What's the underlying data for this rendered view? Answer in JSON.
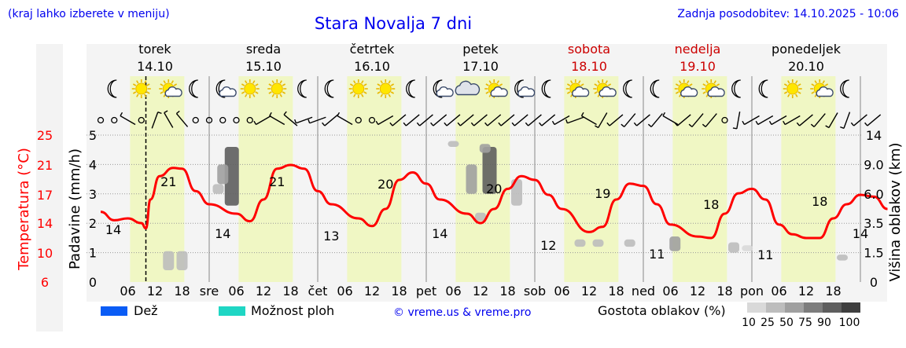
{
  "header": {
    "left_note": "(kraj lahko izberete v meniju)",
    "title": "Stara Novalja 7 dni",
    "updated": "Zadnja posodobitev: 14.10.2025 - 10:06"
  },
  "days": [
    {
      "name": "torek",
      "date": "14.10",
      "abbr": "",
      "weekend": false
    },
    {
      "name": "sreda",
      "date": "15.10",
      "abbr": "sre",
      "weekend": false
    },
    {
      "name": "četrtek",
      "date": "16.10",
      "abbr": "čet",
      "weekend": false
    },
    {
      "name": "petek",
      "date": "17.10",
      "abbr": "pet",
      "weekend": false
    },
    {
      "name": "sobota",
      "date": "18.10",
      "abbr": "sob",
      "weekend": true
    },
    {
      "name": "nedelja",
      "date": "19.10",
      "abbr": "ned",
      "weekend": true
    },
    {
      "name": "ponedeljek",
      "date": "20.10",
      "abbr": "pon",
      "weekend": false
    }
  ],
  "hour_labels": [
    "06",
    "12",
    "18"
  ],
  "legend": {
    "rain": "Dež",
    "showers": "Možnost ploh",
    "copyright": "© vreme.us & vreme.pro",
    "cloud_density": "Gostota oblakov (%)",
    "density_levels": [
      "10",
      "25",
      "50",
      "75",
      "90",
      "100"
    ]
  },
  "colors": {
    "rain": "#0a5cf5",
    "showers": "#1fd6c4",
    "temperature": "#ff0000",
    "title": "#0000ee",
    "weekend": "#cc0000"
  },
  "chart_data": {
    "type": "line",
    "title": "Stara Novalja 7 dni",
    "x_unit": "hours from 14.10 00:00",
    "xlim": [
      0,
      168
    ],
    "now_marker_hour": 10,
    "temperature": {
      "label": "Temperatura (°C)",
      "ticks": [
        6,
        10,
        14,
        17,
        21,
        25
      ],
      "points": [
        [
          0,
          15.2
        ],
        [
          3,
          14.3
        ],
        [
          6,
          14.5
        ],
        [
          9,
          14.0
        ],
        [
          10,
          13.3
        ],
        [
          11,
          16.5
        ],
        [
          13,
          19.5
        ],
        [
          16,
          20.6
        ],
        [
          18,
          20.5
        ],
        [
          21,
          17.5
        ],
        [
          24,
          16.0
        ],
        [
          30,
          15.0
        ],
        [
          33,
          14.2
        ],
        [
          36,
          16.5
        ],
        [
          39,
          20.5
        ],
        [
          42,
          21.0
        ],
        [
          45,
          20.5
        ],
        [
          48,
          17.5
        ],
        [
          51,
          16.0
        ],
        [
          57,
          14.5
        ],
        [
          60,
          13.6
        ],
        [
          63,
          15.5
        ],
        [
          66,
          19.0
        ],
        [
          69,
          20.0
        ],
        [
          72,
          18.5
        ],
        [
          75,
          16.5
        ],
        [
          81,
          15.0
        ],
        [
          84,
          14.0
        ],
        [
          87,
          15.5
        ],
        [
          90,
          17.8
        ],
        [
          93,
          19.5
        ],
        [
          96,
          19.0
        ],
        [
          99,
          17.0
        ],
        [
          102,
          15.5
        ],
        [
          108,
          12.8
        ],
        [
          111,
          13.5
        ],
        [
          114,
          16.5
        ],
        [
          117,
          18.5
        ],
        [
          120,
          18.2
        ],
        [
          123,
          16.0
        ],
        [
          126,
          13.8
        ],
        [
          132,
          12.2
        ],
        [
          135,
          12.0
        ],
        [
          138,
          15.0
        ],
        [
          141,
          17.2
        ],
        [
          144,
          17.8
        ],
        [
          147,
          16.5
        ],
        [
          150,
          13.8
        ],
        [
          153,
          12.5
        ],
        [
          156,
          12.0
        ],
        [
          159,
          12.0
        ],
        [
          162,
          14.5
        ],
        [
          165,
          16.0
        ],
        [
          168,
          17.0
        ],
        [
          171,
          16.8
        ],
        [
          174,
          15.5
        ]
      ],
      "labels": [
        {
          "hour": 1,
          "value": "14"
        },
        {
          "hour": 15,
          "value": "21"
        },
        {
          "hour": 27,
          "value": "14"
        },
        {
          "hour": 39,
          "value": "21"
        },
        {
          "hour": 51,
          "value": "13"
        },
        {
          "hour": 63,
          "value": "20"
        },
        {
          "hour": 75,
          "value": "14"
        },
        {
          "hour": 87,
          "value": "20"
        },
        {
          "hour": 99,
          "value": "12"
        },
        {
          "hour": 111,
          "value": "19"
        },
        {
          "hour": 123,
          "value": "11"
        },
        {
          "hour": 135,
          "value": "18"
        },
        {
          "hour": 147,
          "value": "11"
        },
        {
          "hour": 159,
          "value": "18"
        },
        {
          "hour": 172,
          "value": "14"
        }
      ]
    },
    "precipitation": {
      "label": "Padavine (mm/h)",
      "ylim": [
        0,
        5
      ],
      "ticks": [
        0,
        1,
        2,
        3,
        4,
        5
      ],
      "values": []
    },
    "cloud_height": {
      "label": "Višina oblakov (km)",
      "ticks": [
        "0",
        "1.5",
        "3.5",
        "6.0",
        "9.0",
        "14"
      ]
    },
    "cloud_blobs": [
      {
        "hour": 15,
        "km_low": 0.6,
        "km_high": 1.6,
        "density": 25
      },
      {
        "hour": 18,
        "km_low": 0.6,
        "km_high": 1.6,
        "density": 25
      },
      {
        "hour": 26,
        "km_low": 6.0,
        "km_high": 7.0,
        "density": 25
      },
      {
        "hour": 29,
        "km_low": 5.0,
        "km_high": 12.0,
        "density": 90
      },
      {
        "hour": 27,
        "km_low": 7.0,
        "km_high": 9.0,
        "density": 50
      },
      {
        "hour": 86,
        "km_low": 6.0,
        "km_high": 12.0,
        "density": 90
      },
      {
        "hour": 82,
        "km_low": 6.0,
        "km_high": 9.0,
        "density": 50
      },
      {
        "hour": 85,
        "km_low": 11.0,
        "km_high": 12.5,
        "density": 50
      },
      {
        "hour": 84,
        "km_low": 3.7,
        "km_high": 4.4,
        "density": 25
      },
      {
        "hour": 78,
        "km_low": 12.0,
        "km_high": 13.0,
        "density": 25
      },
      {
        "hour": 92,
        "km_low": 5.0,
        "km_high": 7.5,
        "density": 25
      },
      {
        "hour": 106,
        "km_low": 1.9,
        "km_high": 2.4,
        "density": 25
      },
      {
        "hour": 110,
        "km_low": 1.9,
        "km_high": 2.4,
        "density": 25
      },
      {
        "hour": 117,
        "km_low": 1.9,
        "km_high": 2.4,
        "density": 25
      },
      {
        "hour": 127,
        "km_low": 1.6,
        "km_high": 2.6,
        "density": 50
      },
      {
        "hour": 140,
        "km_low": 1.5,
        "km_high": 2.2,
        "density": 25
      },
      {
        "hour": 143,
        "km_low": 1.6,
        "km_high": 2.0,
        "density": 10
      },
      {
        "hour": 164,
        "km_low": 1.1,
        "km_high": 1.4,
        "density": 25
      }
    ],
    "weather_icons": [
      "moon",
      "sun",
      "sun-cloud",
      "moon",
      "moon-cloud",
      "sun",
      "sun",
      "moon",
      "moon",
      "sun",
      "sun",
      "moon",
      "moon-cloud",
      "cloud",
      "sun-cloud",
      "moon-cloud",
      "moon",
      "sun-cloud",
      "sun-cloud",
      "moon",
      "moon",
      "sun-cloud",
      "sun-cloud",
      "moon",
      "moon",
      "sun",
      "sun-cloud",
      "moon"
    ],
    "wind": [
      {
        "hour": 0,
        "calm": true
      },
      {
        "hour": 3,
        "calm": true
      },
      {
        "hour": 6,
        "calm": false,
        "deg": 300
      },
      {
        "hour": 9,
        "calm": true
      },
      {
        "hour": 12,
        "calm": false,
        "deg": 20
      },
      {
        "hour": 15,
        "calm": false,
        "deg": 330
      },
      {
        "hour": 18,
        "calm": false,
        "deg": 320
      },
      {
        "hour": 21,
        "calm": true
      },
      {
        "hour": 24,
        "calm": true
      },
      {
        "hour": 27,
        "calm": true
      },
      {
        "hour": 30,
        "calm": true
      },
      {
        "hour": 33,
        "calm": true
      },
      {
        "hour": 36,
        "calm": false,
        "deg": 240
      },
      {
        "hour": 39,
        "calm": false,
        "deg": 300
      },
      {
        "hour": 42,
        "calm": false,
        "deg": 310
      },
      {
        "hour": 45,
        "calm": false,
        "deg": 250
      },
      {
        "hour": 48,
        "calm": false,
        "deg": 250
      },
      {
        "hour": 51,
        "calm": false,
        "deg": 230
      },
      {
        "hour": 54,
        "calm": false,
        "deg": 300
      },
      {
        "hour": 57,
        "calm": true
      },
      {
        "hour": 60,
        "calm": true
      },
      {
        "hour": 63,
        "calm": false,
        "deg": 240
      },
      {
        "hour": 66,
        "calm": false,
        "deg": 230
      },
      {
        "hour": 69,
        "calm": false,
        "deg": 230
      },
      {
        "hour": 72,
        "calm": false,
        "deg": 230
      },
      {
        "hour": 75,
        "calm": false,
        "deg": 230
      },
      {
        "hour": 78,
        "calm": false,
        "deg": 230
      },
      {
        "hour": 81,
        "calm": false,
        "deg": 230
      },
      {
        "hour": 84,
        "calm": false,
        "deg": 230
      },
      {
        "hour": 87,
        "calm": false,
        "deg": 230
      },
      {
        "hour": 90,
        "calm": false,
        "deg": 230
      },
      {
        "hour": 93,
        "calm": false,
        "deg": 230
      },
      {
        "hour": 96,
        "calm": false,
        "deg": 230
      },
      {
        "hour": 99,
        "calm": false,
        "deg": 230
      },
      {
        "hour": 102,
        "calm": false,
        "deg": 240
      },
      {
        "hour": 105,
        "calm": false,
        "deg": 250
      },
      {
        "hour": 108,
        "calm": false,
        "deg": 300
      },
      {
        "hour": 111,
        "calm": false,
        "deg": 210
      },
      {
        "hour": 114,
        "calm": false,
        "deg": 230
      },
      {
        "hour": 117,
        "calm": false,
        "deg": 220
      },
      {
        "hour": 120,
        "calm": false,
        "deg": 230
      },
      {
        "hour": 123,
        "calm": false,
        "deg": 220
      },
      {
        "hour": 126,
        "calm": false,
        "deg": 300
      },
      {
        "hour": 129,
        "calm": false,
        "deg": 230
      },
      {
        "hour": 132,
        "calm": false,
        "deg": 220
      },
      {
        "hour": 135,
        "calm": false,
        "deg": 220
      },
      {
        "hour": 138,
        "calm": true
      },
      {
        "hour": 141,
        "calm": false,
        "deg": 190
      },
      {
        "hour": 144,
        "calm": false,
        "deg": 240
      },
      {
        "hour": 147,
        "calm": false,
        "deg": 240
      },
      {
        "hour": 150,
        "calm": false,
        "deg": 240
      },
      {
        "hour": 153,
        "calm": false,
        "deg": 240
      },
      {
        "hour": 156,
        "calm": false,
        "deg": 230
      },
      {
        "hour": 159,
        "calm": false,
        "deg": 220
      },
      {
        "hour": 162,
        "calm": false,
        "deg": 210
      },
      {
        "hour": 165,
        "calm": false,
        "deg": 200
      },
      {
        "hour": 168,
        "calm": false,
        "deg": 230
      },
      {
        "hour": 171,
        "calm": false,
        "deg": 230
      }
    ]
  }
}
